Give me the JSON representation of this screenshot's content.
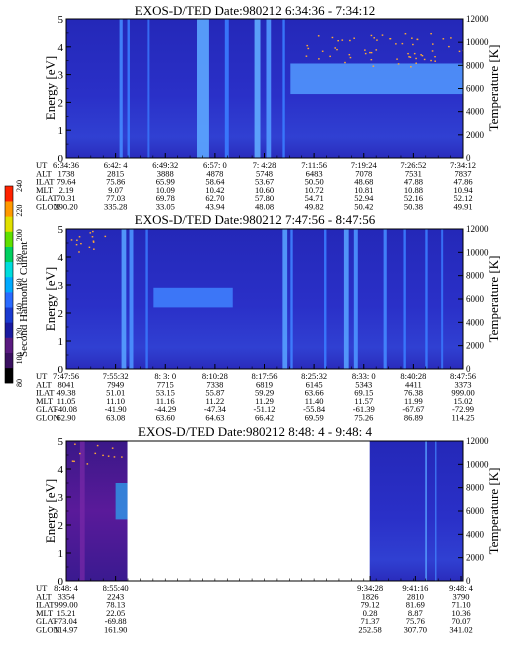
{
  "colorbar": {
    "title": "Second Harmonic Current",
    "ticks": [
      "80",
      "100",
      "120",
      "140",
      "160",
      "180",
      "200",
      "220",
      "240"
    ],
    "colors": [
      "#000000",
      "#3a1060",
      "#5a1a80",
      "#1a1aa0",
      "#1a3ad0",
      "#2a6aff",
      "#00aaff",
      "#00dddd",
      "#00d060",
      "#60e000",
      "#e0e000",
      "#ff9900",
      "#ff2200"
    ]
  },
  "chart_data": [
    {
      "type": "heatmap",
      "title": "EXOS-D/TED   Date:980212  6:34:36 - 7:34:12",
      "ylabel": "Energy [eV]",
      "y2label": "Temperature [K]",
      "ylim": [
        0,
        5
      ],
      "y2lim": [
        0,
        12000
      ],
      "yticks": [
        "0",
        "1",
        "2",
        "3",
        "4",
        "5"
      ],
      "y2ticks": [
        "0",
        "2000",
        "4000",
        "6000",
        "8000",
        "10000",
        "12000"
      ],
      "ephemeris": {
        "labels": [
          "UT",
          "ALT",
          "ILAT",
          "MLT",
          "GLAT",
          "GLON"
        ],
        "columns": [
          [
            "6:34:36",
            "1738",
            "79.64",
            "2.19",
            "70.31",
            "290.20"
          ],
          [
            "6:42: 4",
            "2815",
            "75.86",
            "9.07",
            "77.03",
            "335.28"
          ],
          [
            "6:49:32",
            "3888",
            "65.99",
            "10.09",
            "69.78",
            "33.05"
          ],
          [
            "6:57: 0",
            "4878",
            "58.64",
            "10.42",
            "62.70",
            "43.94"
          ],
          [
            "7: 4:28",
            "5748",
            "53.67",
            "10.60",
            "57.80",
            "48.08"
          ],
          [
            "7:11:56",
            "6483",
            "50.50",
            "10.72",
            "54.71",
            "49.82"
          ],
          [
            "7:19:24",
            "7078",
            "48.68",
            "10.81",
            "52.94",
            "50.42"
          ],
          [
            "7:26:52",
            "7531",
            "47.88",
            "10.88",
            "52.16",
            "50.38"
          ],
          [
            "7:34:12",
            "7837",
            "47.86",
            "10.94",
            "52.12",
            "49.91"
          ]
        ]
      },
      "segments": [
        [
          0,
          1
        ]
      ],
      "stripes": [
        {
          "x": 0.135,
          "w": 0.008,
          "intensity": 0.6
        },
        {
          "x": 0.155,
          "w": 0.006,
          "intensity": 0.5
        },
        {
          "x": 0.205,
          "w": 0.005,
          "intensity": 0.4
        },
        {
          "x": 0.33,
          "w": 0.03,
          "intensity": 0.85
        },
        {
          "x": 0.4,
          "w": 0.01,
          "intensity": 0.5
        },
        {
          "x": 0.475,
          "w": 0.015,
          "intensity": 0.9
        },
        {
          "x": 0.505,
          "w": 0.012,
          "intensity": 0.75
        },
        {
          "x": 0.545,
          "w": 0.006,
          "intensity": 0.5
        }
      ],
      "band": {
        "x_start": 0.565,
        "x_end": 1.0,
        "e_low": 2.3,
        "e_high": 3.4,
        "intensity": 0.75
      },
      "dots": {
        "x_start": 0.6,
        "x_end": 1.0,
        "e_low": 3.3,
        "e_high": 4.5,
        "count": 60
      }
    },
    {
      "type": "heatmap",
      "title": "EXOS-D/TED   Date:980212  7:47:56 - 8:47:56",
      "ylabel": "Energy [eV]",
      "y2label": "Temperature [K]",
      "ylim": [
        0,
        5
      ],
      "y2lim": [
        0,
        12000
      ],
      "yticks": [
        "0",
        "1",
        "2",
        "3",
        "4",
        "5"
      ],
      "y2ticks": [
        "0",
        "2000",
        "4000",
        "6000",
        "8000",
        "10000",
        "12000"
      ],
      "ephemeris": {
        "labels": [
          "UT",
          "ALT",
          "ILAT",
          "MLT",
          "GLAT",
          "GLON"
        ],
        "columns": [
          [
            "7:47:56",
            "8041",
            "49.38",
            "11.05",
            "-40.08",
            "62.90"
          ],
          [
            "7:55:32",
            "7949",
            "51.01",
            "11.10",
            "-41.90",
            "63.08"
          ],
          [
            "8: 3: 0",
            "7715",
            "53.15",
            "11.16",
            "-44.29",
            "63.60"
          ],
          [
            "8:10:28",
            "7338",
            "55.87",
            "11.22",
            "-47.34",
            "64.63"
          ],
          [
            "8:17:56",
            "6819",
            "59.29",
            "11.29",
            "-51.12",
            "66.42"
          ],
          [
            "8:25:32",
            "6145",
            "63.66",
            "11.40",
            "-55.84",
            "69.59"
          ],
          [
            "8:33: 0",
            "5343",
            "69.15",
            "11.57",
            "-61.39",
            "75.26"
          ],
          [
            "8:40:28",
            "4411",
            "76.38",
            "11.99",
            "-67.67",
            "86.89"
          ],
          [
            "8:47:56",
            "3373",
            "999.00",
            "15.02",
            "-72.99",
            "114.25"
          ]
        ]
      },
      "segments": [
        [
          0,
          1
        ]
      ],
      "stripes": [
        {
          "x": 0.14,
          "w": 0.012,
          "intensity": 0.8
        },
        {
          "x": 0.16,
          "w": 0.01,
          "intensity": 0.7
        },
        {
          "x": 0.2,
          "w": 0.006,
          "intensity": 0.45
        },
        {
          "x": 0.545,
          "w": 0.012,
          "intensity": 0.8
        },
        {
          "x": 0.565,
          "w": 0.006,
          "intensity": 0.55
        },
        {
          "x": 0.65,
          "w": 0.006,
          "intensity": 0.5
        },
        {
          "x": 0.7,
          "w": 0.012,
          "intensity": 0.8
        },
        {
          "x": 0.725,
          "w": 0.01,
          "intensity": 0.7
        },
        {
          "x": 0.8,
          "w": 0.008,
          "intensity": 0.6
        },
        {
          "x": 0.85,
          "w": 0.006,
          "intensity": 0.5
        },
        {
          "x": 0.905,
          "w": 0.006,
          "intensity": 0.5
        },
        {
          "x": 0.945,
          "w": 0.005,
          "intensity": 0.45
        }
      ],
      "band": {
        "x_start": 0.22,
        "x_end": 0.42,
        "e_low": 2.2,
        "e_high": 2.9,
        "intensity": 0.55
      },
      "dots": {
        "x_start": 0.0,
        "x_end": 0.1,
        "e_low": 4.2,
        "e_high": 5.0,
        "count": 14
      }
    },
    {
      "type": "heatmap",
      "title": "EXOS-D/TED   Date:980212  8:48: 4 - 9:48: 4",
      "ylabel": "Energy [eV]",
      "y2label": "Temperature [K]",
      "ylim": [
        0,
        5
      ],
      "y2lim": [
        0,
        12000
      ],
      "yticks": [
        "0",
        "1",
        "2",
        "3",
        "4",
        "5"
      ],
      "y2ticks": [
        "0",
        "2000",
        "4000",
        "6000",
        "8000",
        "10000",
        "12000"
      ],
      "ephemeris": {
        "labels": [
          "UT",
          "ALT",
          "ILAT",
          "MLT",
          "GLAT",
          "GLON"
        ],
        "columns": [
          [
            "8:48: 4",
            "3354",
            "999.00",
            "15.21",
            "-73.04",
            "114.97"
          ],
          [
            "8:55:40",
            "2243",
            "78.13",
            "22.05",
            "-69.88",
            "161.90"
          ],
          [
            "9:34:28",
            "1826",
            "79.12",
            "0.28",
            "71.37",
            "252.58"
          ],
          [
            "9:41:16",
            "2810",
            "81.69",
            "8.87",
            "75.76",
            "307.70"
          ],
          [
            "9:48: 4",
            "3790",
            "71.10",
            "10.36",
            "70.07",
            "341.02"
          ]
        ],
        "positions": [
          0.0,
          0.125,
          0.766,
          0.88,
          0.995
        ]
      },
      "segments": [
        [
          0,
          0.155
        ],
        [
          0.765,
          1
        ]
      ],
      "stripes": [
        {
          "x": 0.905,
          "w": 0.004,
          "intensity": 0.8
        },
        {
          "x": 0.93,
          "w": 0.003,
          "intensity": 0.6
        }
      ],
      "band": {
        "x_start": 0.0,
        "x_end": 0.155,
        "e_low": 0.0,
        "e_high": 5.0,
        "intensity": 0.18
      },
      "dots": {
        "x_start": 0.0,
        "x_end": 0.15,
        "e_low": 4.2,
        "e_high": 5.0,
        "count": 12
      }
    }
  ]
}
